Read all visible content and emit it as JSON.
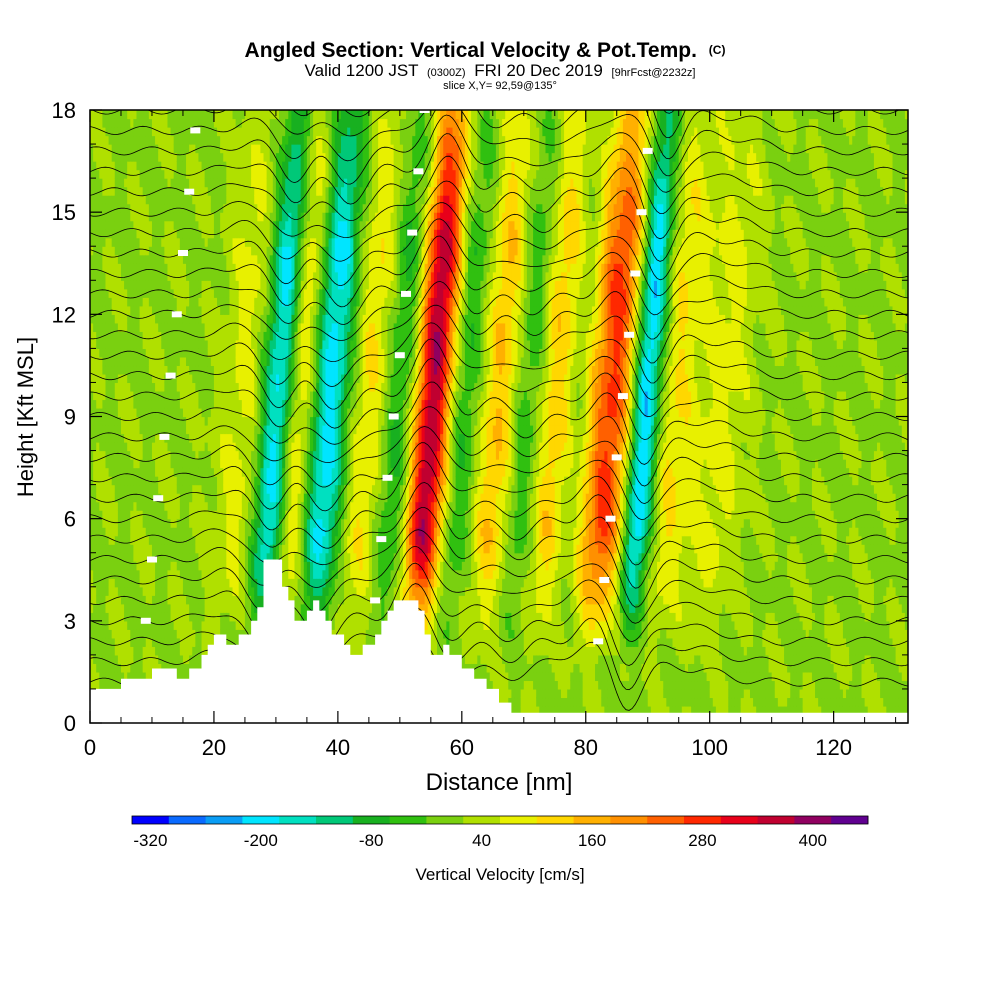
{
  "chart_data": {
    "type": "heatmap",
    "title": "Angled Section: Vertical Velocity & Pot.Temp.",
    "title_mark": "(C)",
    "subtitle": {
      "main_a": "Valid 1200 JST",
      "small_a": "(0300Z)",
      "main_b": "FRI 20 Dec 2019",
      "small_b": "[9hrFcst@2232z]"
    },
    "slice_label": "slice X,Y= 92,59@135°",
    "xlabel": "Distance [nm]",
    "ylabel": "Height [Kft MSL]",
    "xlim": [
      0,
      132
    ],
    "ylim": [
      0,
      18
    ],
    "x_ticks": [
      0,
      20,
      40,
      60,
      80,
      100,
      120
    ],
    "y_ticks": [
      0,
      3,
      6,
      9,
      12,
      15,
      18
    ],
    "colorbar": {
      "label": "Vertical Velocity [cm/s]",
      "tick_labels": [
        "-320",
        "-200",
        "-80",
        "40",
        "160",
        "280",
        "400"
      ],
      "tick_values": [
        -320,
        -200,
        -80,
        40,
        160,
        280,
        400
      ],
      "min": -340,
      "step": 40,
      "colors": [
        "#0000ff",
        "#0a6aff",
        "#0a9df5",
        "#00e5ff",
        "#00e0c0",
        "#00c878",
        "#18b020",
        "#30c010",
        "#7ad010",
        "#b0e000",
        "#e8f000",
        "#ffd700",
        "#ffb000",
        "#ff9000",
        "#ff6000",
        "#ff2800",
        "#e8001a",
        "#c00030",
        "#900060",
        "#600090"
      ]
    },
    "terrain": [
      [
        0,
        1.0
      ],
      [
        5,
        1.0
      ],
      [
        5,
        1.3
      ],
      [
        10,
        1.3
      ],
      [
        10,
        1.6
      ],
      [
        14,
        1.6
      ],
      [
        14,
        1.3
      ],
      [
        16,
        1.3
      ],
      [
        16,
        1.6
      ],
      [
        18,
        1.6
      ],
      [
        18,
        2.0
      ],
      [
        19,
        2.0
      ],
      [
        19,
        2.3
      ],
      [
        20,
        2.3
      ],
      [
        20,
        2.6
      ],
      [
        22,
        2.6
      ],
      [
        22,
        2.3
      ],
      [
        24,
        2.3
      ],
      [
        24,
        2.6
      ],
      [
        26,
        2.6
      ],
      [
        26,
        3.0
      ],
      [
        27,
        3.0
      ],
      [
        27,
        3.4
      ],
      [
        28,
        3.4
      ],
      [
        28,
        4.8
      ],
      [
        31,
        4.8
      ],
      [
        31,
        4.0
      ],
      [
        32,
        4.0
      ],
      [
        32,
        3.6
      ],
      [
        33,
        3.6
      ],
      [
        33,
        3.0
      ],
      [
        35,
        3.0
      ],
      [
        35,
        3.3
      ],
      [
        36,
        3.3
      ],
      [
        36,
        3.6
      ],
      [
        37,
        3.6
      ],
      [
        37,
        3.3
      ],
      [
        38,
        3.3
      ],
      [
        38,
        3.0
      ],
      [
        39,
        3.0
      ],
      [
        39,
        2.6
      ],
      [
        41,
        2.6
      ],
      [
        41,
        2.3
      ],
      [
        42,
        2.3
      ],
      [
        42,
        2.0
      ],
      [
        44,
        2.0
      ],
      [
        44,
        2.3
      ],
      [
        46,
        2.3
      ],
      [
        46,
        2.6
      ],
      [
        47,
        2.6
      ],
      [
        47,
        3.0
      ],
      [
        48,
        3.0
      ],
      [
        48,
        3.3
      ],
      [
        49,
        3.3
      ],
      [
        49,
        3.6
      ],
      [
        53,
        3.6
      ],
      [
        53,
        3.3
      ],
      [
        54,
        3.3
      ],
      [
        54,
        2.6
      ],
      [
        55,
        2.6
      ],
      [
        55,
        2.0
      ],
      [
        57,
        2.0
      ],
      [
        57,
        2.3
      ],
      [
        58,
        2.3
      ],
      [
        58,
        2.0
      ],
      [
        60,
        2.0
      ],
      [
        60,
        1.6
      ],
      [
        62,
        1.6
      ],
      [
        62,
        1.3
      ],
      [
        64,
        1.3
      ],
      [
        64,
        1.0
      ],
      [
        66,
        1.0
      ],
      [
        66,
        0.6
      ],
      [
        68,
        0.6
      ],
      [
        68,
        0.3
      ],
      [
        132,
        0.3
      ]
    ],
    "updrafts": [
      {
        "x": 55,
        "w": 2.4,
        "amp": 420
      },
      {
        "x": 84,
        "w": 3.2,
        "amp": 260
      },
      {
        "x": 46,
        "w": 3.0,
        "amp": 150
      },
      {
        "x": 66,
        "w": 2.6,
        "amp": 140
      },
      {
        "x": 75,
        "w": 2.6,
        "amp": 130
      },
      {
        "x": 33,
        "w": 2.4,
        "amp": 180
      },
      {
        "x": 94,
        "w": 2.6,
        "amp": 90
      },
      {
        "x": 102,
        "w": 2.8,
        "amp": 60
      },
      {
        "x": 25,
        "w": 2.8,
        "amp": 60
      }
    ],
    "downdrafts": [
      {
        "x": 30.5,
        "w": 2.0,
        "amp": 300
      },
      {
        "x": 38.5,
        "w": 2.4,
        "amp": 230
      },
      {
        "x": 50,
        "w": 3.2,
        "amp": 180
      },
      {
        "x": 89.5,
        "w": 1.8,
        "amp": 300
      },
      {
        "x": 60,
        "w": 2.4,
        "amp": 110
      },
      {
        "x": 70.5,
        "w": 2.2,
        "amp": 110
      },
      {
        "x": 79,
        "w": 2.0,
        "amp": 90
      }
    ],
    "isentrope_levels": 30
  }
}
